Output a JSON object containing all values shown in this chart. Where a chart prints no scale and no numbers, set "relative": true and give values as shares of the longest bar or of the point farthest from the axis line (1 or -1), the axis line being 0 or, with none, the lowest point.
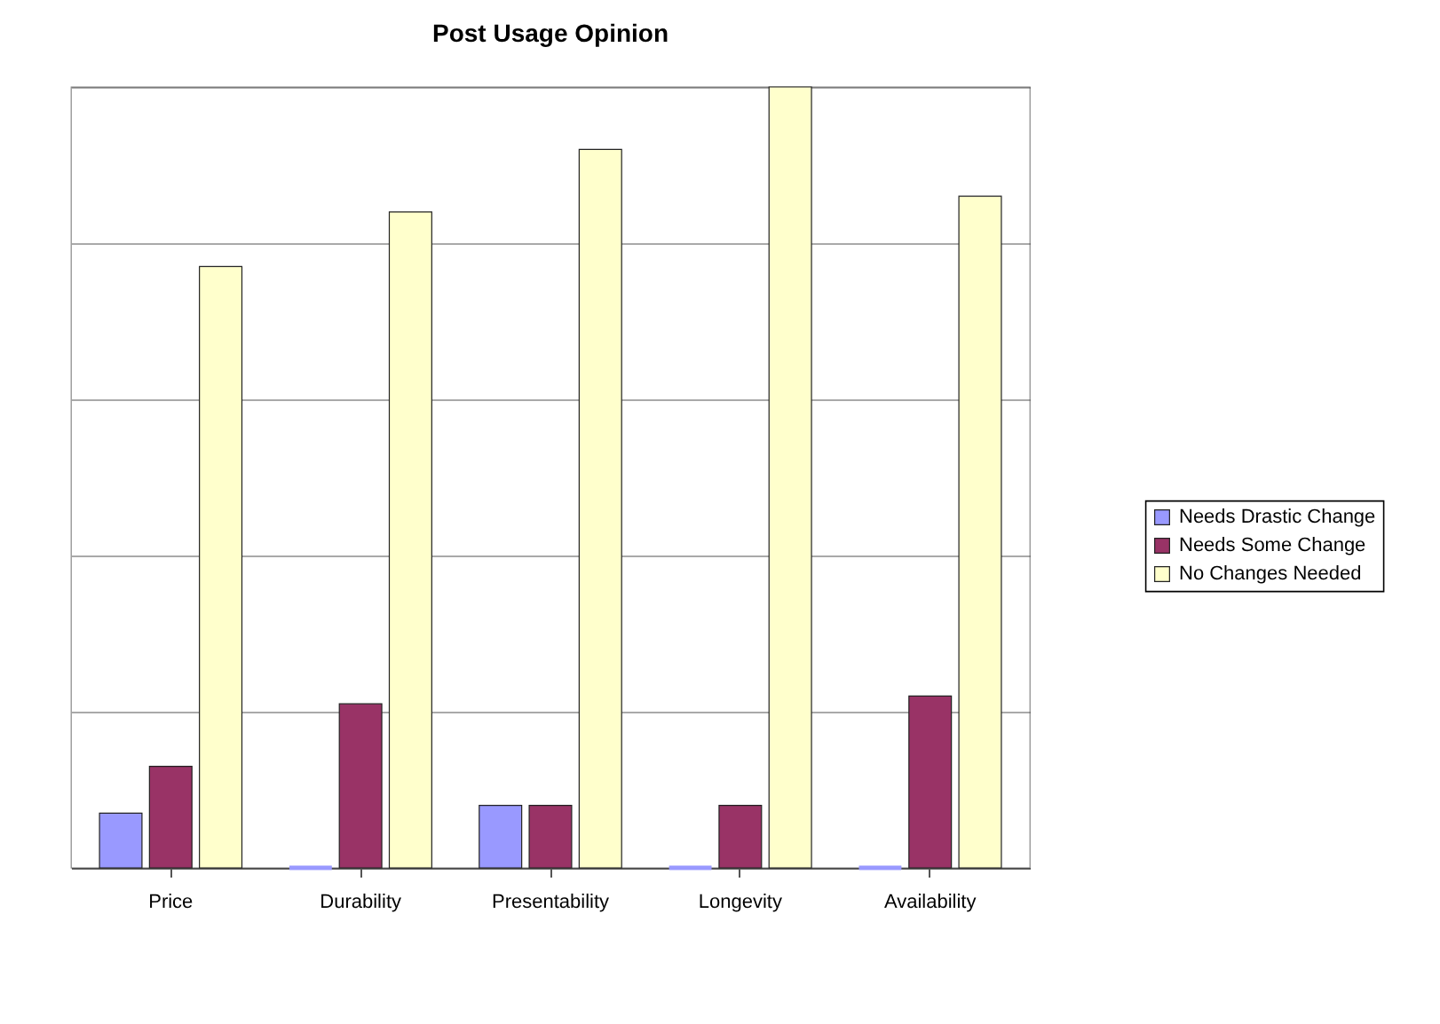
{
  "chart_data": {
    "type": "bar",
    "title": "Post Usage Opinion",
    "categories": [
      "Price",
      "Durability",
      "Presentability",
      "Longevity",
      "Availability"
    ],
    "series": [
      {
        "name": "Needs Drastic Change",
        "color": "#9999ff",
        "values": [
          0.07,
          0,
          0.08,
          0,
          0
        ]
      },
      {
        "name": "Needs Some Change",
        "color": "#993366",
        "values": [
          0.13,
          0.21,
          0.08,
          0.08,
          0.22
        ]
      },
      {
        "name": "No Changes Needed",
        "color": "#ffffcc",
        "values": [
          0.77,
          0.84,
          0.92,
          1,
          0.86
        ]
      }
    ],
    "relative": true,
    "grid": "y",
    "legend": "right"
  }
}
